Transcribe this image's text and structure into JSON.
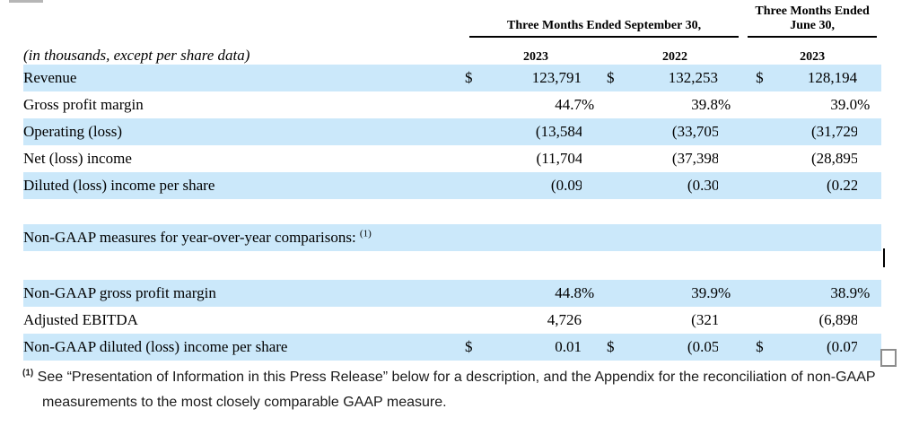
{
  "colors": {
    "row_highlight": "#cbe8fa",
    "rule": "#000000",
    "checkbox_border": "#8d8d8d",
    "top_bar": "#b6b6b6"
  },
  "table": {
    "header": {
      "group1": "Three Months Ended September 30,",
      "group2_line1": "Three Months Ended",
      "group2_line2": "June 30,",
      "years": [
        "2023",
        "2022",
        "2023"
      ],
      "unit_note": "(in thousands, except per share data)"
    },
    "rows": [
      {
        "type": "data",
        "label": "Revenue",
        "highlight": true,
        "cols": [
          [
            "$",
            "123,791",
            ""
          ],
          [
            "$",
            "132,253",
            ""
          ],
          [
            "$",
            "128,194",
            ""
          ]
        ]
      },
      {
        "type": "data",
        "label": "Gross profit margin",
        "highlight": false,
        "cols": [
          [
            "",
            "44.7",
            "%"
          ],
          [
            "",
            "39.8",
            "%"
          ],
          [
            "",
            "39.0",
            "%"
          ]
        ]
      },
      {
        "type": "data",
        "label": "Operating (loss)",
        "highlight": true,
        "cols": [
          [
            "",
            "(13,584)",
            ""
          ],
          [
            "",
            "(33,705)",
            ""
          ],
          [
            "",
            "(31,729)",
            ""
          ]
        ]
      },
      {
        "type": "data",
        "label": "Net (loss) income",
        "highlight": false,
        "cols": [
          [
            "",
            "(11,704)",
            ""
          ],
          [
            "",
            "(37,398)",
            ""
          ],
          [
            "",
            "(28,895)",
            ""
          ]
        ]
      },
      {
        "type": "data",
        "label": "Diluted (loss) income per share",
        "highlight": true,
        "cols": [
          [
            "",
            "(0.09)",
            ""
          ],
          [
            "",
            "(0.30)",
            ""
          ],
          [
            "",
            "(0.22)",
            ""
          ]
        ]
      },
      {
        "type": "gap",
        "height": 28
      },
      {
        "type": "section",
        "label": "Non-GAAP measures for year-over-year comparisons:",
        "sup": "(1)",
        "highlight": true
      },
      {
        "type": "gap",
        "height": 32
      },
      {
        "type": "data",
        "label": "Non-GAAP gross profit margin",
        "highlight": true,
        "cols": [
          [
            "",
            "44.8",
            "%"
          ],
          [
            "",
            "39.9",
            "%"
          ],
          [
            "",
            "38.9",
            "%"
          ]
        ]
      },
      {
        "type": "data",
        "label": "Adjusted EBITDA",
        "highlight": false,
        "cols": [
          [
            "",
            "4,726",
            ""
          ],
          [
            "",
            "(321)",
            ""
          ],
          [
            "",
            "(6,898)",
            ""
          ]
        ]
      },
      {
        "type": "data",
        "label": "Non-GAAP diluted (loss) income per share",
        "highlight": true,
        "cols": [
          [
            "$",
            "0.01",
            ""
          ],
          [
            "$",
            "(0.05)",
            ""
          ],
          [
            "$",
            "(0.07)",
            ""
          ]
        ]
      }
    ]
  },
  "footnote": {
    "marker": "(1)",
    "text": " See “Presentation of Information in this Press Release” below for a description, and the Appendix for the reconciliation of non-GAAP measurements to the most closely comparable GAAP measure."
  }
}
